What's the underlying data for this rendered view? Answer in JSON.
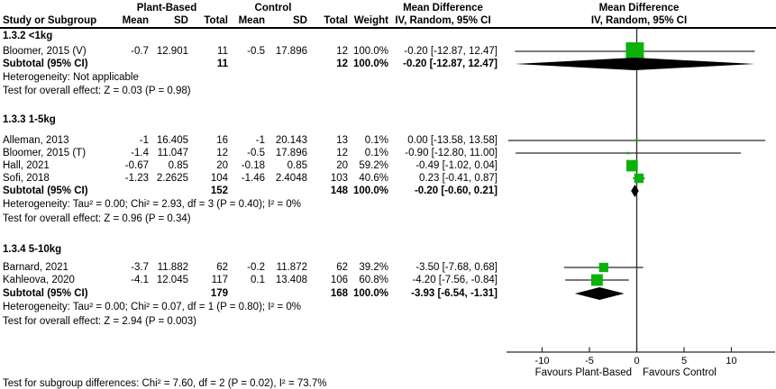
{
  "header": {
    "group1": "Plant-Based",
    "group2": "Control",
    "effect": "Mean Difference",
    "method": "IV, Random, 95% CI",
    "columns": {
      "study": "Study or Subgroup",
      "mean": "Mean",
      "sd": "SD",
      "total": "Total",
      "weight": "Weight"
    }
  },
  "colors": {
    "marker_green": "#0CB20C",
    "line_black": "#2a2a2a",
    "diamond_black": "#000000",
    "text": "#000000"
  },
  "chart_data": {
    "type": "forest",
    "effect_measure": "Mean Difference",
    "method": "IV, Random, 95% CI",
    "axis": {
      "ticks": [
        -10,
        -5,
        0,
        5,
        10
      ],
      "range": [
        -14,
        14.6
      ]
    },
    "favours_left": "Favours Plant-Based",
    "favours_right": "Favours Control",
    "footer": "Test for subgroup differences: Chi² = 7.60, df = 2 (P = 0.02), I² = 73.7%",
    "groups": [
      {
        "label": "1.3.2 <1kg",
        "studies": [
          {
            "name": "Bloomer, 2015 (V)",
            "mean1": "-0.7",
            "sd1": "12.901",
            "n1": "11",
            "mean2": "-0.5",
            "sd2": "17.896",
            "n2": "12",
            "weight": "100.0%",
            "weight_pct": 100.0,
            "md": -0.2,
            "lo": -12.87,
            "hi": 12.47,
            "md_text": "-0.20 [-12.87, 12.47]"
          }
        ],
        "subtotal": {
          "label": "Subtotal (95% CI)",
          "n1": "11",
          "n2": "12",
          "weight": "100.0%",
          "md": -0.2,
          "lo": -12.87,
          "hi": 12.47,
          "md_text": "-0.20 [-12.87, 12.47]"
        },
        "heterogeneity": "Heterogeneity: Not applicable",
        "overall_test": "Test for overall effect: Z = 0.03 (P = 0.98)"
      },
      {
        "label": "1.3.3 1-5kg",
        "studies": [
          {
            "name": "Alleman, 2013",
            "mean1": "-1",
            "sd1": "16.405",
            "n1": "16",
            "mean2": "-1",
            "sd2": "20.143",
            "n2": "13",
            "weight": "0.1%",
            "weight_pct": 0.1,
            "md": 0.0,
            "lo": -13.58,
            "hi": 13.58,
            "md_text": "0.00 [-13.58, 13.58]"
          },
          {
            "name": "Bloomer, 2015 (T)",
            "mean1": "-1.4",
            "sd1": "11.047",
            "n1": "12",
            "mean2": "-0.5",
            "sd2": "17.896",
            "n2": "12",
            "weight": "0.1%",
            "weight_pct": 0.1,
            "md": -0.9,
            "lo": -12.8,
            "hi": 11.0,
            "md_text": "-0.90 [-12.80, 11.00]"
          },
          {
            "name": "Hall, 2021",
            "mean1": "-0.67",
            "sd1": "0.85",
            "n1": "20",
            "mean2": "-0.18",
            "sd2": "0.85",
            "n2": "20",
            "weight": "59.2%",
            "weight_pct": 59.2,
            "md": -0.49,
            "lo": -1.02,
            "hi": 0.04,
            "md_text": "-0.49 [-1.02, 0.04]"
          },
          {
            "name": "Sofi, 2018",
            "mean1": "-1.23",
            "sd1": "2.2625",
            "n1": "104",
            "mean2": "-1.46",
            "sd2": "2.4048",
            "n2": "103",
            "weight": "40.6%",
            "weight_pct": 40.6,
            "md": 0.23,
            "lo": -0.41,
            "hi": 0.87,
            "md_text": "0.23 [-0.41, 0.87]"
          }
        ],
        "subtotal": {
          "label": "Subtotal (95% CI)",
          "n1": "152",
          "n2": "148",
          "weight": "100.0%",
          "md": -0.2,
          "lo": -0.6,
          "hi": 0.21,
          "md_text": "-0.20 [-0.60, 0.21]"
        },
        "heterogeneity": "Heterogeneity: Tau² = 0.00; Chi² = 2.93, df = 3 (P = 0.40); I² = 0%",
        "overall_test": "Test for overall effect: Z = 0.96 (P = 0.34)"
      },
      {
        "label": "1.3.4 5-10kg",
        "studies": [
          {
            "name": "Barnard, 2021",
            "mean1": "-3.7",
            "sd1": "11.882",
            "n1": "62",
            "mean2": "-0.2",
            "sd2": "11.872",
            "n2": "62",
            "weight": "39.2%",
            "weight_pct": 39.2,
            "md": -3.5,
            "lo": -7.68,
            "hi": 0.68,
            "md_text": "-3.50 [-7.68, 0.68]"
          },
          {
            "name": "Kahleova, 2020",
            "mean1": "-4.1",
            "sd1": "12.045",
            "n1": "117",
            "mean2": "0.1",
            "sd2": "13.408",
            "n2": "106",
            "weight": "60.8%",
            "weight_pct": 60.8,
            "md": -4.2,
            "lo": -7.56,
            "hi": -0.84,
            "md_text": "-4.20 [-7.56, -0.84]"
          }
        ],
        "subtotal": {
          "label": "Subtotal (95% CI)",
          "n1": "179",
          "n2": "168",
          "weight": "100.0%",
          "md": -3.93,
          "lo": -6.54,
          "hi": -1.31,
          "md_text": "-3.93 [-6.54, -1.31]"
        },
        "heterogeneity": "Heterogeneity: Tau² = 0.00; Chi² = 0.07, df = 1 (P = 0.80); I² = 0%",
        "overall_test": "Test for overall effect: Z = 2.94 (P = 0.003)"
      }
    ]
  }
}
